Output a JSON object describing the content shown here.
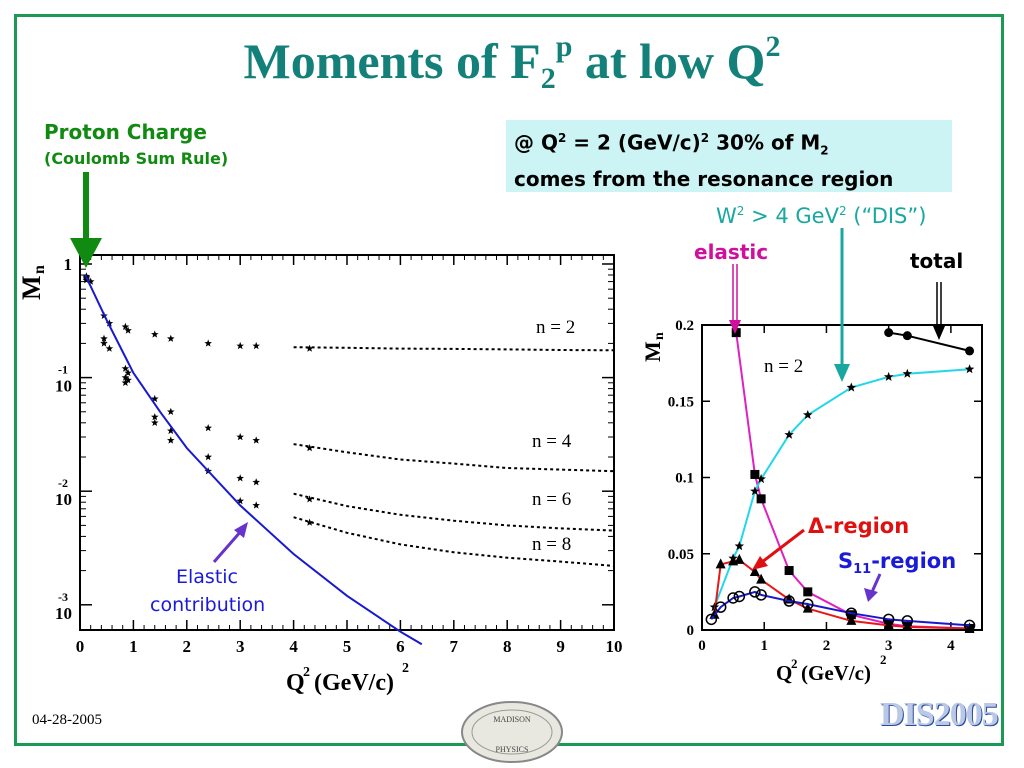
{
  "title": {
    "main": "Moments of F",
    "sub": "2",
    "sup": "p",
    "rest": " at low Q",
    "sup2": "2"
  },
  "annotations": {
    "proton_charge": "Proton Charge",
    "coulomb_sum_rule": "(Coulomb Sum Rule)",
    "info_line1_a": "@ Q",
    "info_line1_b": " = 2 (GeV/c)",
    "info_line1_c": " 30% of M",
    "info_sub": "2",
    "info_line2": "comes from the resonance region",
    "dis_label_a": "W",
    "dis_label_b": " > 4 GeV",
    "dis_label_c": " (“DIS”)",
    "elastic": "elastic",
    "total": "total",
    "delta_region": "Δ-region",
    "s11_a": "S",
    "s11_sub": "11",
    "s11_b": "-region",
    "elastic_contribution_1": "Elastic",
    "elastic_contribution_2": "contribution"
  },
  "footer": {
    "date": "04-28-2005",
    "logo_top": "MADISON",
    "logo_bottom": "PHYSICS",
    "dis_logo": "DIS2005"
  },
  "colors": {
    "title": "#14807a",
    "green": "#118a11",
    "blue": "#1818d0",
    "cyan": "#22d8e8",
    "magenta": "#e020c0",
    "red": "#e81818",
    "purple": "#6633cc",
    "info_bg": "#cdf4f4"
  },
  "chart_data": [
    {
      "type": "scatter",
      "ylabel": "Mn",
      "xlabel": "Q2 (GeV/c)2",
      "xlim": [
        0,
        10
      ],
      "ylim": [
        0.0006,
        1.2
      ],
      "log_y": true,
      "x_ticks": [
        0,
        1,
        2,
        3,
        4,
        5,
        6,
        7,
        8,
        9,
        10
      ],
      "y_ticks": [
        {
          "value": 1,
          "base": "1",
          "exp": ""
        },
        {
          "value": 0.1,
          "base": "10",
          "exp": "-1"
        },
        {
          "value": 0.01,
          "base": "10",
          "exp": "-2"
        },
        {
          "value": 0.001,
          "base": "10",
          "exp": "-3"
        }
      ],
      "series": [
        {
          "name": "n = 2",
          "points": [
            [
              0.12,
              0.78
            ],
            [
              0.2,
              0.7
            ],
            [
              0.45,
              0.35
            ],
            [
              0.55,
              0.3
            ],
            [
              0.85,
              0.28
            ],
            [
              0.9,
              0.26
            ],
            [
              1.4,
              0.24
            ],
            [
              1.7,
              0.22
            ],
            [
              2.4,
              0.2
            ],
            [
              3.0,
              0.19
            ],
            [
              3.3,
              0.19
            ],
            [
              4.3,
              0.18
            ]
          ],
          "fit": [
            [
              4.0,
              0.185
            ],
            [
              5,
              0.183
            ],
            [
              6,
              0.18
            ],
            [
              7,
              0.179
            ],
            [
              8,
              0.177
            ],
            [
              9,
              0.175
            ],
            [
              10,
              0.174
            ]
          ]
        },
        {
          "name": "n = 4",
          "points": [
            [
              0.12,
              0.76
            ],
            [
              0.45,
              0.22
            ],
            [
              0.55,
              0.18
            ],
            [
              0.85,
              0.12
            ],
            [
              0.9,
              0.11
            ],
            [
              1.4,
              0.065
            ],
            [
              1.7,
              0.05
            ],
            [
              2.4,
              0.036
            ],
            [
              3.0,
              0.03
            ],
            [
              3.3,
              0.028
            ],
            [
              4.3,
              0.024
            ]
          ],
          "fit": [
            [
              4.0,
              0.026
            ],
            [
              5,
              0.022
            ],
            [
              6,
              0.019
            ],
            [
              7,
              0.0175
            ],
            [
              8,
              0.016
            ],
            [
              9,
              0.0155
            ],
            [
              10,
              0.015
            ]
          ]
        },
        {
          "name": "n = 6",
          "points": [
            [
              0.12,
              0.74
            ],
            [
              0.45,
              0.2
            ],
            [
              0.85,
              0.1
            ],
            [
              0.9,
              0.095
            ],
            [
              1.4,
              0.045
            ],
            [
              1.7,
              0.034
            ],
            [
              2.4,
              0.02
            ],
            [
              3.0,
              0.013
            ],
            [
              3.3,
              0.012
            ],
            [
              4.3,
              0.0085
            ]
          ],
          "fit": [
            [
              4.0,
              0.0095
            ],
            [
              5,
              0.0074
            ],
            [
              6,
              0.0062
            ],
            [
              7,
              0.0055
            ],
            [
              8,
              0.005
            ],
            [
              9,
              0.0047
            ],
            [
              10,
              0.0045
            ]
          ]
        },
        {
          "name": "n = 8",
          "points": [
            [
              0.12,
              0.72
            ],
            [
              0.85,
              0.09
            ],
            [
              1.4,
              0.04
            ],
            [
              1.7,
              0.028
            ],
            [
              2.4,
              0.015
            ],
            [
              3.0,
              0.0082
            ],
            [
              3.3,
              0.0075
            ],
            [
              4.3,
              0.0053
            ]
          ],
          "fit": [
            [
              4.0,
              0.0059
            ],
            [
              5,
              0.0043
            ],
            [
              6,
              0.0034
            ],
            [
              7,
              0.0029
            ],
            [
              8,
              0.0026
            ],
            [
              9,
              0.0024
            ],
            [
              10,
              0.0022
            ]
          ]
        },
        {
          "name": "Elastic contribution",
          "points": [
            [
              0.1,
              0.8
            ],
            [
              0.5,
              0.32
            ],
            [
              1.0,
              0.11
            ],
            [
              1.5,
              0.05
            ],
            [
              2.0,
              0.024
            ],
            [
              3.0,
              0.0075
            ],
            [
              4.0,
              0.0028
            ],
            [
              5.0,
              0.0012
            ],
            [
              6.0,
              0.00058
            ],
            [
              6.4,
              0.00045
            ]
          ]
        }
      ]
    },
    {
      "type": "line",
      "ylabel": "Mn",
      "xlabel": "Q2 (GeV/c)2",
      "annotation": "n = 2",
      "xlim": [
        0,
        4.5
      ],
      "ylim": [
        0,
        0.2
      ],
      "x_ticks": [
        0,
        1,
        2,
        3,
        4
      ],
      "y_ticks": [
        0,
        0.05,
        0.1,
        0.15,
        0.2
      ],
      "series": [
        {
          "name": "total",
          "points": [
            [
              3.0,
              0.195
            ],
            [
              3.3,
              0.193
            ],
            [
              4.3,
              0.183
            ]
          ]
        },
        {
          "name": "elastic",
          "points": [
            [
              0.55,
              0.195
            ],
            [
              0.85,
              0.102
            ],
            [
              0.95,
              0.086
            ],
            [
              1.4,
              0.039
            ],
            [
              1.7,
              0.025
            ],
            [
              2.4,
              0.01
            ],
            [
              3.0,
              0.004
            ],
            [
              3.3,
              0.0025
            ],
            [
              4.3,
              0.001
            ]
          ]
        },
        {
          "name": "W2 > 4 GeV2 (DIS)",
          "points": [
            [
              0.2,
              0.015
            ],
            [
              0.5,
              0.047
            ],
            [
              0.6,
              0.055
            ],
            [
              0.85,
              0.091
            ],
            [
              0.95,
              0.099
            ],
            [
              1.4,
              0.128
            ],
            [
              1.7,
              0.141
            ],
            [
              2.4,
              0.159
            ],
            [
              3.0,
              0.166
            ],
            [
              3.3,
              0.168
            ],
            [
              4.3,
              0.171
            ]
          ]
        },
        {
          "name": "Δ-region",
          "points": [
            [
              0.2,
              0.01
            ],
            [
              0.3,
              0.043
            ],
            [
              0.5,
              0.045
            ],
            [
              0.6,
              0.046
            ],
            [
              0.85,
              0.038
            ],
            [
              0.95,
              0.033
            ],
            [
              1.4,
              0.02
            ],
            [
              1.7,
              0.014
            ],
            [
              2.4,
              0.006
            ],
            [
              3.0,
              0.003
            ],
            [
              3.3,
              0.002
            ],
            [
              4.3,
              0.001
            ]
          ]
        },
        {
          "name": "S11-region",
          "points": [
            [
              0.15,
              0.007
            ],
            [
              0.3,
              0.015
            ],
            [
              0.5,
              0.021
            ],
            [
              0.6,
              0.022
            ],
            [
              0.85,
              0.025
            ],
            [
              0.95,
              0.023
            ],
            [
              1.4,
              0.019
            ],
            [
              1.7,
              0.017
            ],
            [
              2.4,
              0.011
            ],
            [
              3.0,
              0.007
            ],
            [
              3.3,
              0.006
            ],
            [
              4.3,
              0.003
            ]
          ]
        }
      ]
    }
  ]
}
